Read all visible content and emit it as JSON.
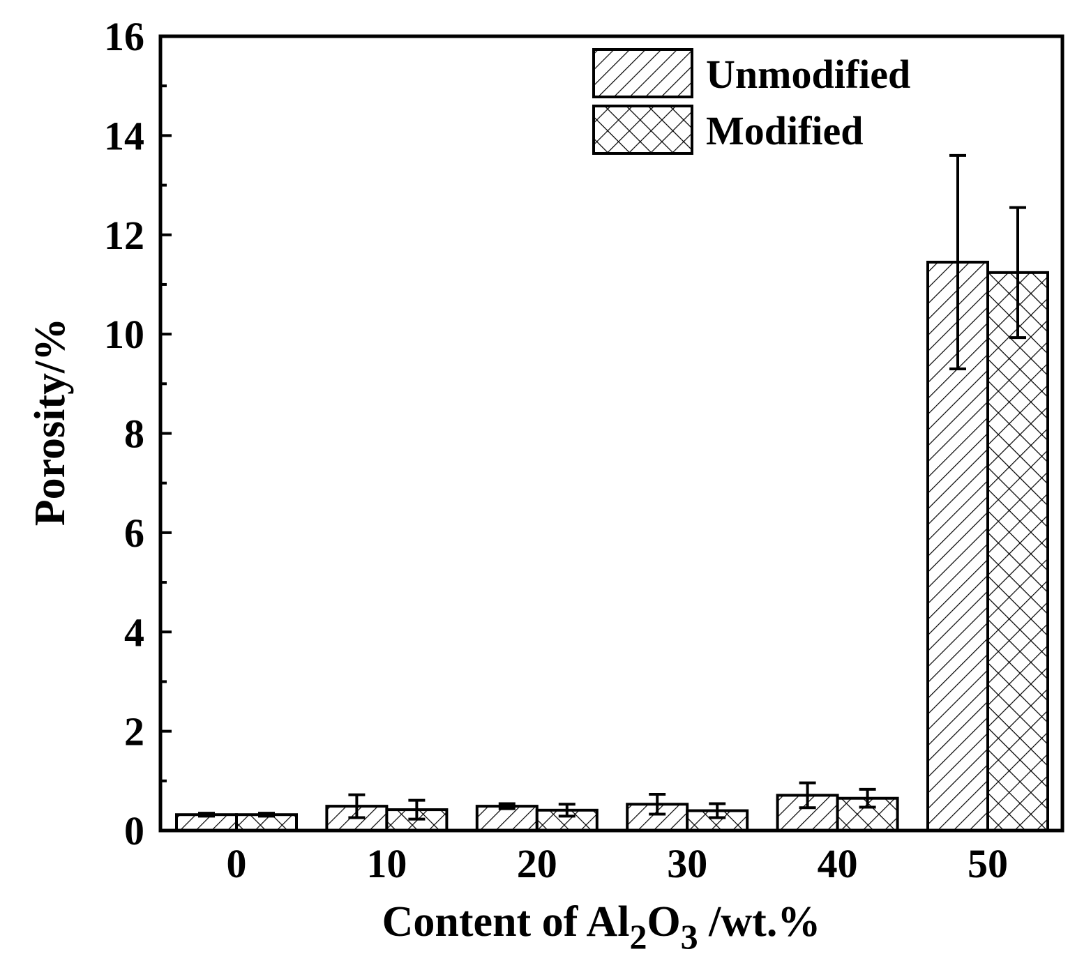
{
  "chart_data": {
    "type": "bar",
    "categories": [
      "0",
      "10",
      "20",
      "30",
      "40",
      "50"
    ],
    "series": [
      {
        "name": "Unmodified",
        "pattern": "diagonal-hatch",
        "values": [
          0.32,
          0.49,
          0.49,
          0.53,
          0.71,
          11.45
        ],
        "errors": [
          0.03,
          0.23,
          0.05,
          0.2,
          0.25,
          2.15
        ]
      },
      {
        "name": "Modified",
        "pattern": "cross-hatch",
        "values": [
          0.32,
          0.42,
          0.41,
          0.4,
          0.65,
          11.24
        ],
        "errors": [
          0.03,
          0.19,
          0.12,
          0.14,
          0.18,
          1.31
        ]
      }
    ],
    "yticks": [
      "0",
      "2",
      "4",
      "6",
      "8",
      "10",
      "12",
      "14",
      "16"
    ],
    "ylim": [
      0,
      16
    ],
    "ylabel": "Porosity/%",
    "xlabel": {
      "prefix": "Content of Al",
      "sub1": "2",
      "mid": "O",
      "sub2": "3",
      "suffix": " /wt.%"
    },
    "legend_position": "top-right",
    "grid": false,
    "colors": {
      "ink": "#000000",
      "fill": "#ffffff"
    }
  }
}
